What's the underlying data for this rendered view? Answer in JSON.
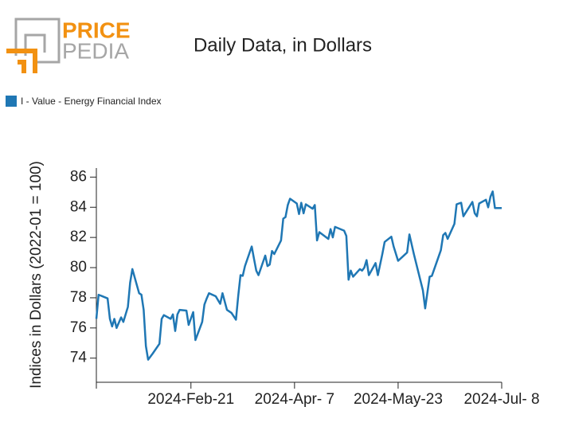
{
  "logo": {
    "top": "PRICE",
    "bottom": "PEDIA"
  },
  "chart_data": {
    "type": "line",
    "title": "Daily Data, in Dollars",
    "y_label": "Indices in Dollars (2022-01 = 100)",
    "x": [
      "2024-01-10",
      "2024-01-11",
      "2024-01-15",
      "2024-01-16",
      "2024-01-17",
      "2024-01-18",
      "2024-01-19",
      "2024-01-21",
      "2024-01-22",
      "2024-01-24",
      "2024-01-25",
      "2024-01-26",
      "2024-01-29",
      "2024-01-30",
      "2024-01-31",
      "2024-02-01",
      "2024-02-02",
      "2024-02-04",
      "2024-02-07",
      "2024-02-08",
      "2024-02-09",
      "2024-02-12",
      "2024-02-13",
      "2024-02-14",
      "2024-02-15",
      "2024-02-16",
      "2024-02-19",
      "2024-02-20",
      "2024-02-22",
      "2024-02-23",
      "2024-02-26",
      "2024-02-27",
      "2024-02-28",
      "2024-02-29",
      "2024-03-03",
      "2024-03-05",
      "2024-03-06",
      "2024-03-08",
      "2024-03-10",
      "2024-03-12",
      "2024-03-13",
      "2024-03-14",
      "2024-03-15",
      "2024-03-16",
      "2024-03-19",
      "2024-03-20",
      "2024-03-21",
      "2024-03-22",
      "2024-03-25",
      "2024-03-26",
      "2024-03-27",
      "2024-03-28",
      "2024-03-29",
      "2024-04-01",
      "2024-04-02",
      "2024-04-03",
      "2024-04-04",
      "2024-04-05",
      "2024-04-08",
      "2024-04-09",
      "2024-04-10",
      "2024-04-11",
      "2024-04-12",
      "2024-04-15",
      "2024-04-16",
      "2024-04-17",
      "2024-04-18",
      "2024-04-22",
      "2024-04-23",
      "2024-04-24",
      "2024-04-25",
      "2024-04-29",
      "2024-04-30",
      "2024-05-01",
      "2024-05-02",
      "2024-05-03",
      "2024-05-06",
      "2024-05-07",
      "2024-05-08",
      "2024-05-09",
      "2024-05-10",
      "2024-05-13",
      "2024-05-14",
      "2024-05-16",
      "2024-05-17",
      "2024-05-20",
      "2024-05-21",
      "2024-05-23",
      "2024-05-27",
      "2024-05-28",
      "2024-05-30",
      "2024-06-03",
      "2024-06-04",
      "2024-06-06",
      "2024-06-07",
      "2024-06-11",
      "2024-06-12",
      "2024-06-13",
      "2024-06-14",
      "2024-06-17",
      "2024-06-18",
      "2024-06-20",
      "2024-06-21",
      "2024-06-25",
      "2024-06-26",
      "2024-06-27",
      "2024-06-28",
      "2024-07-01",
      "2024-07-02",
      "2024-07-03",
      "2024-07-04",
      "2024-07-05",
      "2024-07-08"
    ],
    "series": [
      {
        "name": "I - Value - Energy Financial Index",
        "color": "#1f77b4",
        "values": [
          76.6,
          78.2,
          77.96,
          76.6,
          76.1,
          76.6,
          76.0,
          76.7,
          76.4,
          77.4,
          79.0,
          79.9,
          78.3,
          78.2,
          77.2,
          74.8,
          73.9,
          74.3,
          74.95,
          76.6,
          76.85,
          76.6,
          76.9,
          75.8,
          76.9,
          77.2,
          77.15,
          76.2,
          77.05,
          75.2,
          76.4,
          77.55,
          77.96,
          78.3,
          78.1,
          77.6,
          78.3,
          77.2,
          77.0,
          76.55,
          78.1,
          79.5,
          79.45,
          80.1,
          81.4,
          80.6,
          79.8,
          79.5,
          80.8,
          80.1,
          80.2,
          81.1,
          80.9,
          81.8,
          83.25,
          83.35,
          84.15,
          84.57,
          84.25,
          83.55,
          84.3,
          83.6,
          84.2,
          83.9,
          84.15,
          81.8,
          82.35,
          81.9,
          82.55,
          82.0,
          82.7,
          82.45,
          82.1,
          79.2,
          79.8,
          79.4,
          79.9,
          79.8,
          80.0,
          80.5,
          79.5,
          80.3,
          79.5,
          80.9,
          81.7,
          82.05,
          81.4,
          80.45,
          81.0,
          82.2,
          80.9,
          78.5,
          77.3,
          79.4,
          79.45,
          81.15,
          82.15,
          82.3,
          81.9,
          82.9,
          84.2,
          84.3,
          83.4,
          84.35,
          83.6,
          83.4,
          84.25,
          84.5,
          84.0,
          84.7,
          85.05,
          83.95,
          83.95
        ]
      }
    ],
    "xlim": [
      "2024-01-10",
      "2024-07-08"
    ],
    "xticks": [
      {
        "value": "2024-02-21",
        "label": "2024-Feb-21"
      },
      {
        "value": "2024-04-07",
        "label": "2024-Apr- 7"
      },
      {
        "value": "2024-05-23",
        "label": "2024-May-23"
      },
      {
        "value": "2024-07-08",
        "label": "2024-Jul- 8"
      }
    ],
    "ylim": [
      72.4,
      86.6
    ],
    "yticks": [
      74,
      76,
      78,
      80,
      82,
      84,
      86
    ],
    "grid": false,
    "legend": "top-left"
  }
}
